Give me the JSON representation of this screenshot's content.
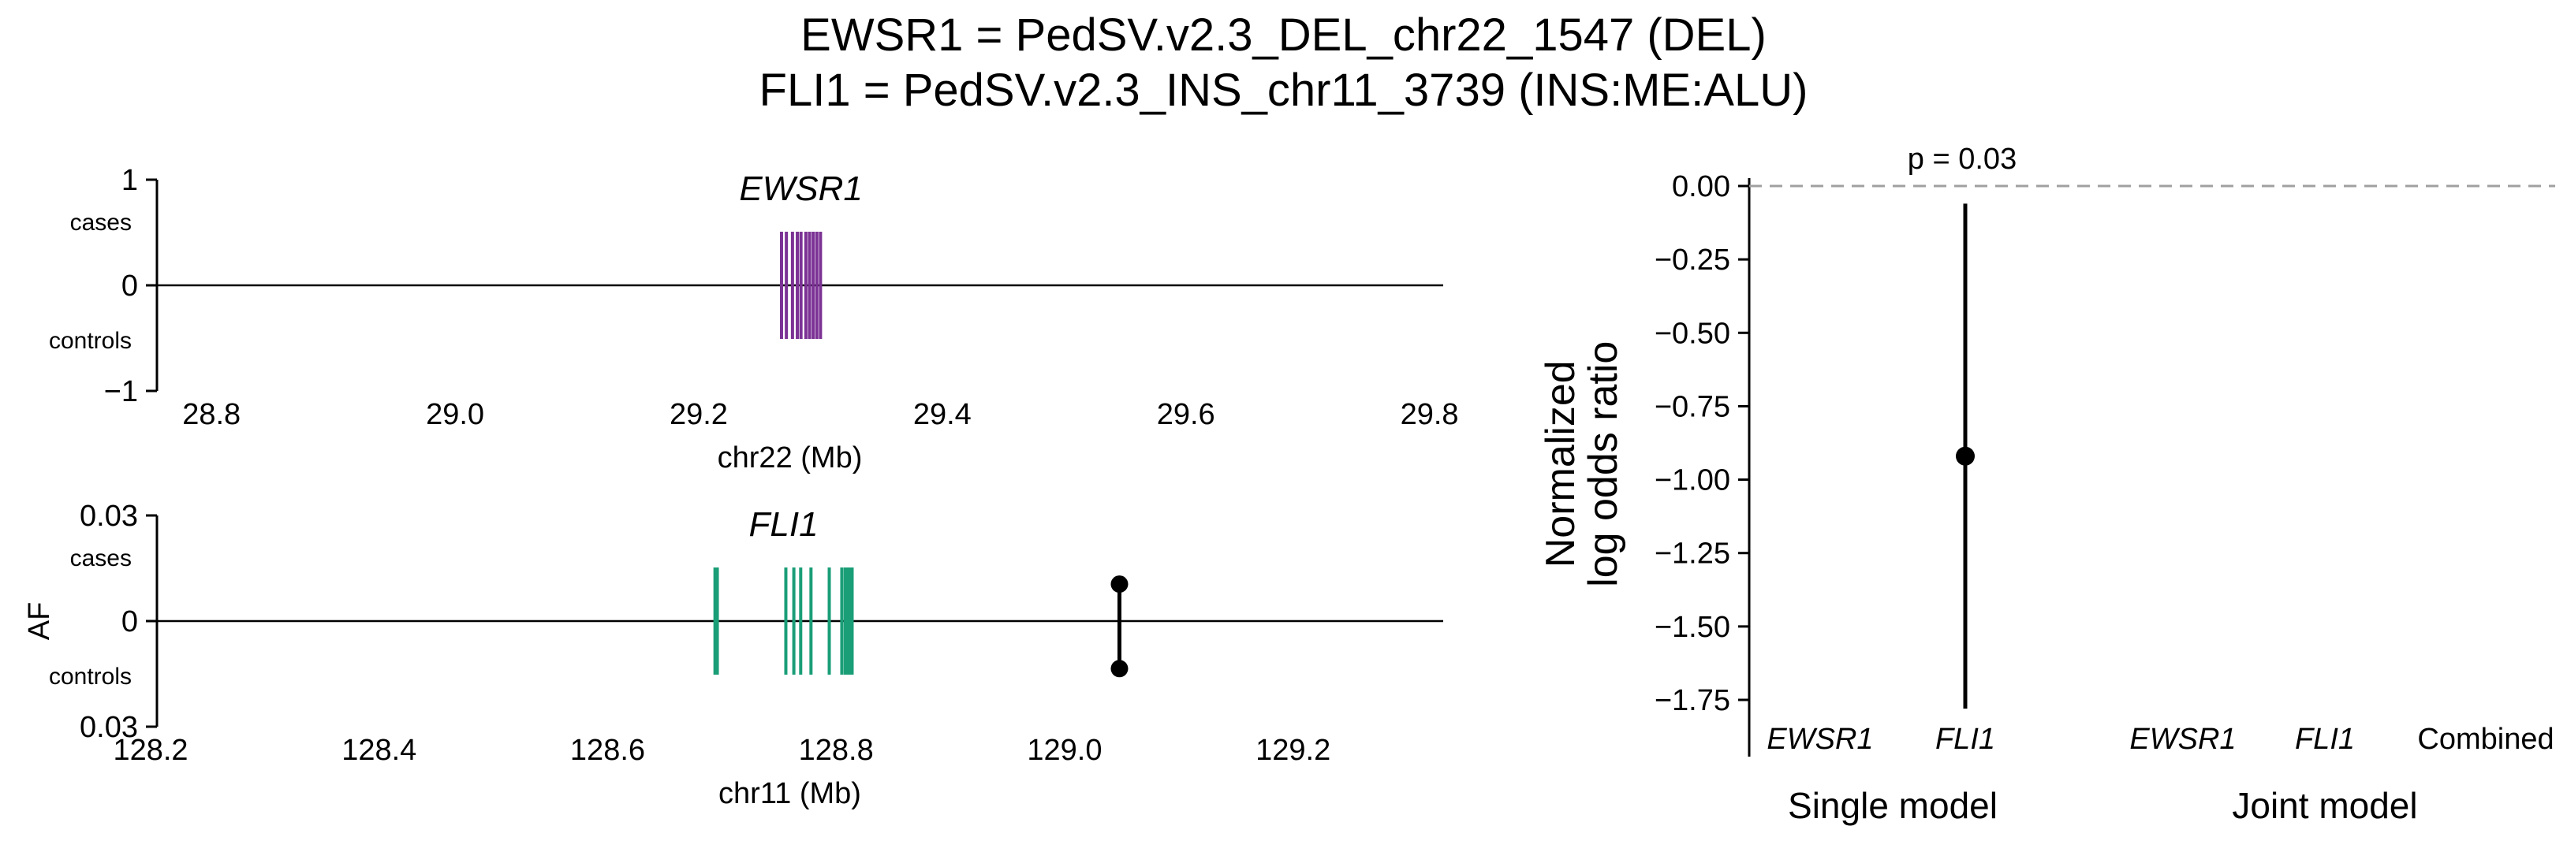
{
  "title": {
    "line1": "EWSR1 = PedSV.v2.3_DEL_chr22_1547 (DEL)",
    "line2": "FLI1 = PedSV.v2.3_INS_chr11_3739 (INS:ME:ALU)"
  },
  "colors": {
    "ewsr1_exon": "#7b3294",
    "fli1_exon": "#1a9e77",
    "sv_marker": "#000000",
    "null_line": "#a0a0a0"
  },
  "chart_data": [
    {
      "type": "locus_track",
      "gene": "EWSR1",
      "xlabel": "chr22 (Mb)",
      "xlim": [
        28.75,
        29.81
      ],
      "xticks": [
        "28.8",
        "29.0",
        "29.2",
        "29.4",
        "29.6",
        "29.8"
      ],
      "ylim": [
        -1,
        1
      ],
      "yticks": [
        "1",
        "0",
        "−1"
      ],
      "ylabel_cases": "cases",
      "ylabel_controls": "controls",
      "exons_mb": [
        29.268,
        29.272,
        29.277,
        29.281,
        29.284,
        29.288,
        29.291,
        29.294,
        29.297,
        29.3
      ],
      "sv": null
    },
    {
      "type": "locus_track",
      "gene": "FLI1",
      "xlabel": "chr11 (Mb)",
      "ylabel": "AF",
      "xlim": [
        128.2,
        129.33
      ],
      "xticks": [
        "128.2",
        "128.4",
        "128.6",
        "128.8",
        "129.0",
        "129.2"
      ],
      "ylim": [
        -0.03,
        0.03
      ],
      "yticks": [
        "0.03",
        "0",
        "0.03"
      ],
      "ylabel_cases": "cases",
      "ylabel_controls": "controls",
      "exons_mb": [
        128.694,
        128.696,
        128.756,
        128.763,
        128.769,
        128.778,
        128.794,
        128.805,
        128.808,
        128.81,
        128.812,
        128.814
      ],
      "sv": {
        "position_mb": 129.048,
        "af_cases": 0.0105,
        "af_controls": 0.0135
      }
    },
    {
      "type": "scatter",
      "ylabel": "Normalized\nlog odds ratio",
      "ylim": [
        -1.88,
        0.03
      ],
      "yticks": [
        "0.00",
        "−0.25",
        "−0.50",
        "−0.75",
        "−1.00",
        "−1.25",
        "−1.50",
        "−1.75"
      ],
      "null_line_y": 0,
      "categories": [
        "EWSR1",
        "FLI1",
        "EWSR1",
        "FLI1",
        "Combined"
      ],
      "groups": [
        {
          "label": "Single model",
          "categories": [
            "EWSR1",
            "FLI1"
          ]
        },
        {
          "label": "Joint model",
          "categories": [
            "EWSR1",
            "FLI1",
            "Combined"
          ]
        }
      ],
      "points": [
        {
          "category": "FLI1",
          "group": "Single model",
          "y": -0.92,
          "ci": [
            -1.78,
            -0.06
          ],
          "pvalue_label": "p = 0.03"
        }
      ]
    }
  ]
}
